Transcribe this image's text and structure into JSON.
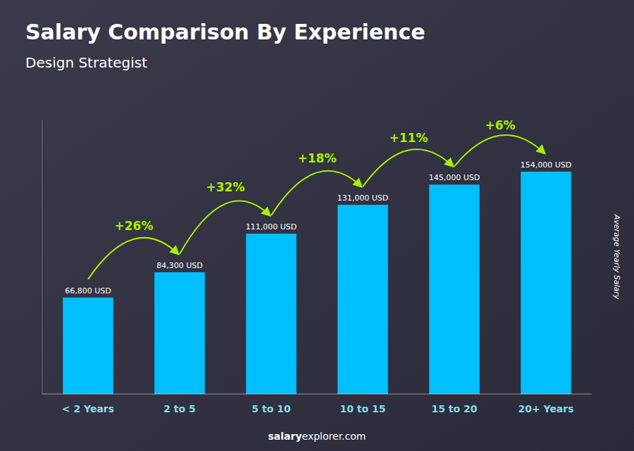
{
  "chart_data": {
    "type": "bar",
    "title": "Salary Comparison By Experience",
    "subtitle": "Design Strategist",
    "categories": [
      "< 2 Years",
      "2 to 5",
      "5 to 10",
      "10 to 15",
      "15 to 20",
      "20+ Years"
    ],
    "values": [
      66800,
      84300,
      111000,
      131000,
      145000,
      154000
    ],
    "value_labels": [
      "66,800 USD",
      "84,300 USD",
      "111,000 USD",
      "131,000 USD",
      "145,000 USD",
      "154,000 USD"
    ],
    "data_labels": true,
    "annotations": [
      "+26%",
      "+32%",
      "+18%",
      "+11%",
      "+6%"
    ],
    "color": "#00BFFF",
    "ylabel": "Average Yearly Salary",
    "footer": [
      "salary",
      "explorer.com"
    ],
    "ylim": [
      0,
      190000
    ],
    "tick_labels": "x",
    "grid": false
  }
}
